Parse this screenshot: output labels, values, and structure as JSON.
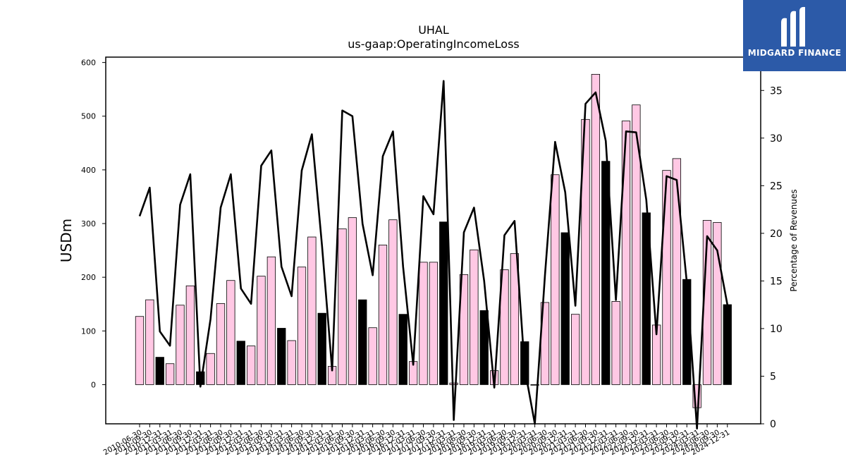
{
  "brand": {
    "logo_text": "MIDGARD FINANCE",
    "logo_color": "#2c5aa8"
  },
  "chart_data": {
    "type": "bar",
    "title": "UHAL",
    "subtitle": "us-gaap:OperatingIncomeLoss",
    "ylabel": "USDm",
    "y2label": "Percentage of Revenues",
    "ylim": [
      -73,
      610
    ],
    "y2lim": [
      0,
      38.5
    ],
    "yticks": [
      0,
      100,
      200,
      300,
      400,
      500,
      600
    ],
    "y2ticks": [
      0,
      5,
      10,
      15,
      20,
      25,
      30,
      35
    ],
    "categories": [
      "2010-06-30",
      "2010-09-30",
      "2010-12-31",
      "2011-03-31",
      "2011-06-30",
      "2011-09-30",
      "2011-12-31",
      "2012-03-31",
      "2012-06-30",
      "2012-09-30",
      "2012-12-31",
      "2013-03-31",
      "2013-06-30",
      "2013-09-30",
      "2013-12-31",
      "2014-03-31",
      "2014-06-30",
      "2014-09-30",
      "2014-12-31",
      "2015-03-31",
      "2015-06-30",
      "2015-09-30",
      "2015-12-31",
      "2016-03-31",
      "2016-06-30",
      "2016-09-30",
      "2016-12-31",
      "2017-03-31",
      "2017-06-30",
      "2017-09-30",
      "2017-12-31",
      "2018-03-31",
      "2018-06-30",
      "2018-09-30",
      "2018-12-31",
      "2019-03-31",
      "2019-06-30",
      "2019-09-30",
      "2019-12-31",
      "2020-03-31",
      "2020-06-30",
      "2020-09-30",
      "2020-12-31",
      "2021-03-31",
      "2021-06-30",
      "2021-09-30",
      "2021-12-31",
      "2022-03-31",
      "2022-06-30",
      "2022-09-30",
      "2022-12-31",
      "2023-03-31",
      "2023-06-30",
      "2023-09-30",
      "2023-12-31",
      "2024-03-31",
      "2024-06-30",
      "2024-09-30",
      "2024-12-31"
    ],
    "xtick_labels": [
      "2010-06-30",
      "2010-09-30",
      "2010-12-31",
      "2011-03-31",
      "2011-06-30",
      "2011-09-30",
      "2011-12-31",
      "2012-03-31",
      "2012-06-30",
      "2012-09-30",
      "2012-12-31",
      "2013-03-31",
      "2013-06-30",
      "2013-09-30",
      "2013-12-31",
      "2014-03-31",
      "2014-06-30",
      "2014-09-30",
      "2014-12-31",
      "2015-03-31",
      "2015-06-30",
      "2015-09-30",
      "2015-12-31",
      "2016-03-31",
      "2016-06-30",
      "2016-09-30",
      "2016-12-31",
      "2017-03-31",
      "2017-06-30",
      "2017-09-30",
      "2017-12-31",
      "2018-03-31",
      "2018-06-30",
      "2018-09-30",
      "2018-12-31",
      "2019-03-31",
      "2019-06-30",
      "2019-09-30",
      "2019-12-31",
      "2020-03-31",
      "2020-06-30",
      "2020-09-30",
      "2020-12-31",
      "2021-03-31",
      "2021-06-30",
      "2021-09-30",
      "2021-12-31",
      "2022-03-31",
      "2022-06-30",
      "2022-09-30",
      "2022-12-31",
      "2023-03-31",
      "2023-06-30",
      "2023-09-30",
      "2023-12-31",
      "2024-03-31",
      "2024-06-30",
      "2024-09-30",
      "2024-12-31"
    ],
    "highlight": [
      false,
      false,
      true,
      false,
      false,
      false,
      true,
      false,
      false,
      false,
      true,
      false,
      false,
      false,
      true,
      false,
      false,
      false,
      true,
      false,
      false,
      false,
      true,
      false,
      false,
      false,
      true,
      false,
      false,
      false,
      true,
      false,
      false,
      false,
      true,
      false,
      false,
      false,
      true,
      false,
      false,
      false,
      true,
      false,
      false,
      false,
      true,
      false,
      false,
      false,
      true,
      false,
      false,
      false,
      true,
      false,
      false,
      false,
      true
    ],
    "series": [
      {
        "type": "bar",
        "values": [
          127,
          158,
          51,
          39,
          148,
          184,
          24,
          58,
          151,
          194,
          81,
          72,
          202,
          238,
          105,
          82,
          219,
          275,
          133,
          34,
          290,
          311,
          158,
          106,
          260,
          307,
          131,
          43,
          228,
          228,
          303,
          3,
          205,
          251,
          138,
          26,
          214,
          244,
          80,
          0,
          153,
          391,
          283,
          131,
          494,
          578,
          416,
          155,
          491,
          521,
          320,
          111,
          399,
          421,
          196,
          -43,
          306,
          302,
          149
        ]
      },
      {
        "type": "line",
        "values": [
          21.8,
          24.8,
          9.7,
          8.2,
          23.0,
          26.2,
          3.9,
          11.0,
          22.7,
          26.2,
          14.2,
          12.6,
          27.1,
          28.7,
          16.5,
          13.4,
          26.6,
          30.4,
          18.7,
          5.6,
          32.9,
          32.3,
          21.0,
          15.6,
          28.1,
          30.7,
          16.5,
          6.2,
          23.9,
          22.0,
          36.0,
          0.4,
          20.1,
          22.7,
          15.0,
          3.8,
          19.8,
          21.3,
          5.8,
          0.0,
          15.6,
          29.6,
          24.3,
          12.4,
          33.6,
          34.8,
          29.7,
          13.0,
          30.7,
          30.6,
          23.5,
          9.4,
          26.0,
          25.6,
          14.8,
          -0.5,
          19.7,
          18.2,
          12.5
        ]
      }
    ],
    "colors": {
      "bar": "#ffc8e4",
      "bar_highlight": "#000000",
      "line": "#000000"
    },
    "grid": false,
    "legend": "none"
  }
}
